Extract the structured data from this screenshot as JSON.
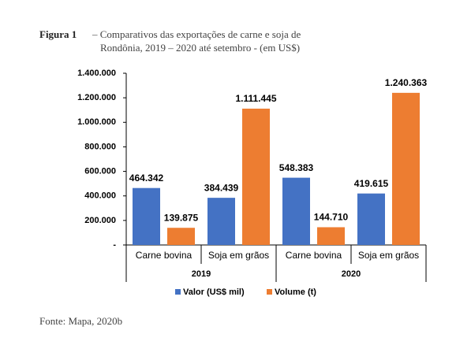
{
  "chart_data": {
    "type": "bar",
    "caption_label": "Figura 1",
    "title": [
      "– Comparativos das exportações de carne e soja de",
      "Rondônia, 2019 – 2020 até setembro - (em US$)"
    ],
    "categories": [
      "Carne bovina",
      "Soja em grãos",
      "Carne bovina",
      "Soja em grãos"
    ],
    "category_groups": [
      "2019",
      "2020"
    ],
    "series": [
      {
        "name": "Valor (US$ mil)",
        "color": "#4472c4",
        "values": [
          464342,
          384439,
          548383,
          419615
        ],
        "value_labels": [
          "464.342",
          "384.439",
          "548.383",
          "419.615"
        ]
      },
      {
        "name": "Volume (t)",
        "color": "#ed7d31",
        "values": [
          139875,
          1111445,
          144710,
          1240363
        ],
        "value_labels": [
          "139.875",
          "1.111.445",
          "144.710",
          "1.240.363"
        ]
      }
    ],
    "ylim": [
      0,
      1400000
    ],
    "yticks": [
      {
        "value": 0,
        "label": "-"
      },
      {
        "value": 200000,
        "label": "200.000"
      },
      {
        "value": 400000,
        "label": "400.000"
      },
      {
        "value": 600000,
        "label": "600.000"
      },
      {
        "value": 800000,
        "label": "800.000"
      },
      {
        "value": 1000000,
        "label": "1.000.000"
      },
      {
        "value": 1200000,
        "label": "1.200.000"
      },
      {
        "value": 1400000,
        "label": "1.400.000"
      }
    ],
    "source": "Fonte: Mapa, 2020b"
  }
}
